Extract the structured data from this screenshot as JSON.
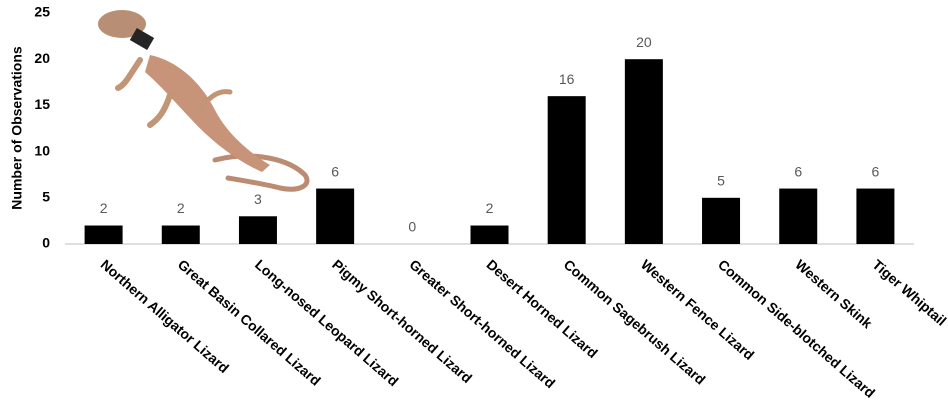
{
  "chart_data": {
    "type": "bar",
    "y_axis_label": "Number of Observations",
    "categories": [
      "Northern Alligator Lizard",
      "Great Basin Collared Lizard",
      "Long-nosed Leopard Lizard",
      "Pigmy Short-horned Lizard",
      "Greater Short-horned Lizard",
      "Desert Horned Lizard",
      "Common Sagebrush Lizard",
      "Western Fence Lizard",
      "Common Side-blotched Lizard",
      "Western Skink",
      "Tiger Whiptail"
    ],
    "values": [
      2,
      2,
      3,
      6,
      0,
      2,
      16,
      20,
      5,
      6,
      6
    ],
    "color": "#000000",
    "ylim": [
      0,
      25
    ],
    "yticks": [
      0,
      5,
      10,
      15,
      20,
      25
    ],
    "grid": false
  }
}
